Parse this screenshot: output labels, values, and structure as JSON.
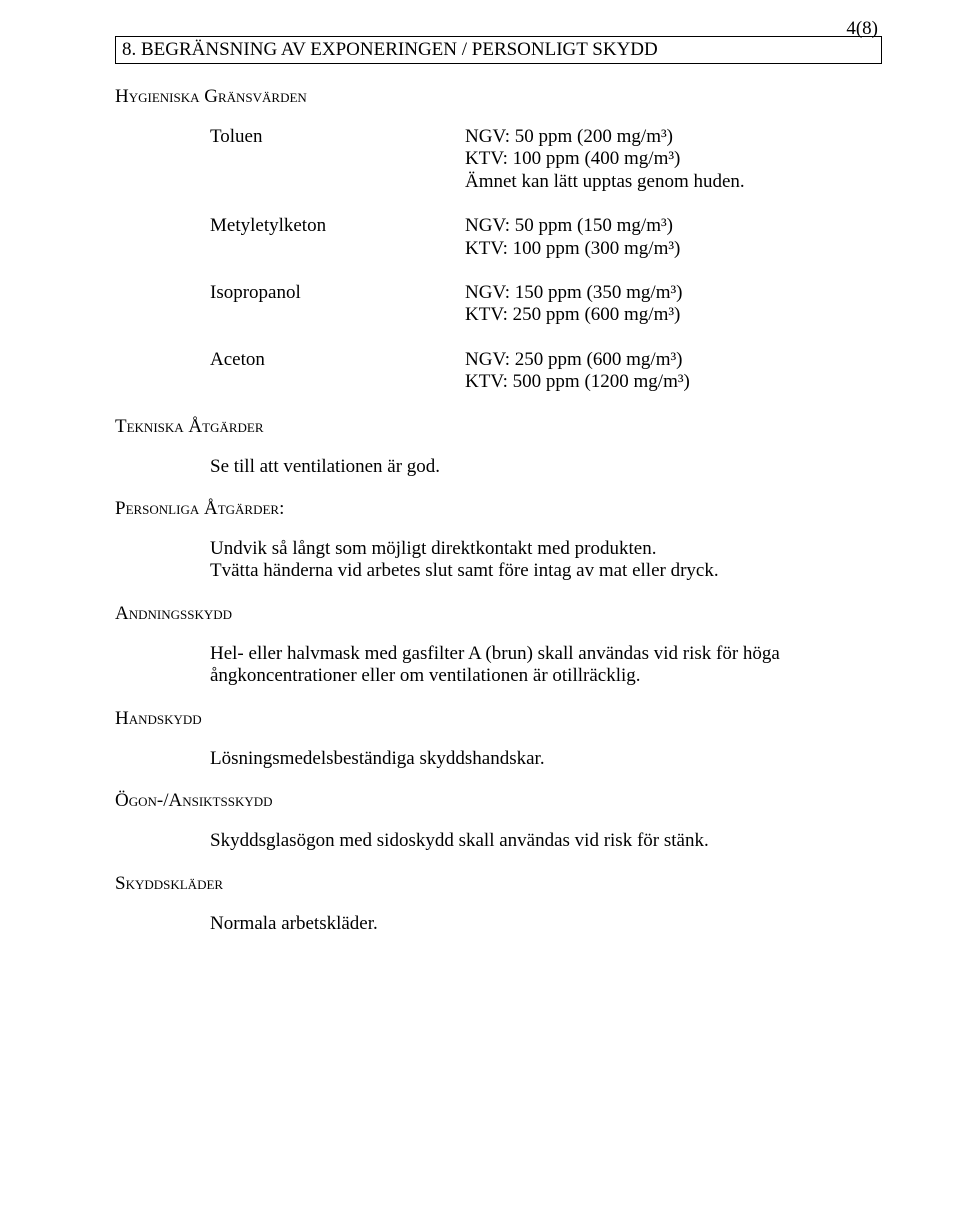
{
  "pageNumber": "4(8)",
  "sectionHeader": "8. BEGRÄNSNING AV EXPONERINGEN / PERSONLIGT SKYDD",
  "hygHeading": "Hygieniska Gränsvärden",
  "limits": [
    {
      "name": "Toluen",
      "line1": "NGV: 50 ppm (200 mg/m³)",
      "line2": "KTV: 100 ppm (400 mg/m³)",
      "line3": "Ämnet kan lätt upptas genom huden."
    },
    {
      "name": "Metyletylketon",
      "line1": "NGV: 50 ppm (150 mg/m³)",
      "line2": "KTV: 100 ppm (300 mg/m³)"
    },
    {
      "name": "Isopropanol",
      "line1": "NGV: 150 ppm (350 mg/m³)",
      "line2": "KTV: 250 ppm (600 mg/m³)"
    },
    {
      "name": "Aceton",
      "line1": "NGV: 250 ppm (600 mg/m³)",
      "line2": "KTV: 500 ppm (1200 mg/m³)"
    }
  ],
  "tekHeading": "Tekniska Åtgärder",
  "tekBody": "Se till att ventilationen är god.",
  "persHeading": "Personliga Åtgärder:",
  "persBody1": "Undvik så långt som möjligt direktkontakt med produkten.",
  "persBody2": "Tvätta händerna vid arbetes slut samt före intag av mat eller dryck.",
  "andHeading": "Andningsskydd",
  "andBody": "Hel- eller halvmask med gasfilter A (brun) skall användas vid risk för höga ångkoncentrationer eller om ventilationen är otillräcklig.",
  "handHeading": "Handskydd",
  "handBody": "Lösningsmedelsbeständiga skyddshandskar.",
  "ogonHeading": "Ögon-/Ansiktsskydd",
  "ogonBody": "Skyddsglasögon med sidoskydd skall användas vid risk för stänk.",
  "skyddHeading": "Skyddskläder",
  "skyddBody": "Normala arbetskläder."
}
